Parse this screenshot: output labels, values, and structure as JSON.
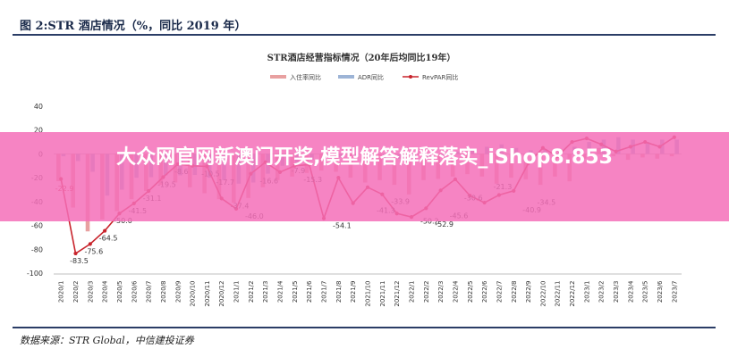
{
  "figure_header": "图 2:STR 酒店情况（%，同比 2019 年）",
  "source_note": "数据来源：STR Global，中信建投证券",
  "overlay_text": "大众网官网新澳门开奖,模型解答解释落实_iShop8.853",
  "chart_data": {
    "type": "line",
    "title": "STR酒店经营指标情况（20年后均同比19年）",
    "ylim": [
      -100,
      40
    ],
    "yticks": [
      40,
      20,
      0,
      -20,
      -40,
      -60,
      -80,
      -100
    ],
    "x": [
      "2020/1",
      "2020/2",
      "2020/3",
      "2020/4",
      "2020/5",
      "2020/6",
      "2020/7",
      "2020/8",
      "2020/9",
      "2020/10",
      "2020/11",
      "2020/12",
      "2021/1",
      "2021/2",
      "2021/3",
      "2021/4",
      "2021/5",
      "2021/6",
      "2021/7",
      "2021/8",
      "2021/9",
      "2021/10",
      "2021/11",
      "2021/12",
      "2022/1",
      "2022/2",
      "2022/3",
      "2022/4",
      "2022/5",
      "2022/6",
      "2022/7",
      "2022/8",
      "2022/9",
      "2022/10",
      "2022/11",
      "2022/12",
      "2023/1",
      "2023/2",
      "2023/3",
      "2023/4",
      "2023/5",
      "2023/6",
      "2023/7"
    ],
    "legend_position": "top-center",
    "series": [
      {
        "name": "入住率同比",
        "color": "#e8a0a0",
        "line": false,
        "bar": true,
        "values": [
          -22.9,
          -45,
          -65,
          -55,
          -48,
          -38,
          -31.1,
          -26,
          -24,
          -28,
          -33,
          -38,
          -41,
          -37,
          -28,
          -22,
          -19,
          -16,
          -14,
          -15,
          -20,
          -24,
          -22,
          -26,
          -34,
          -22,
          -21,
          -19,
          -17,
          -19,
          -25,
          -20,
          -21.3,
          -26,
          -19,
          -23,
          -4,
          5,
          -2,
          -5,
          -3,
          -4,
          -2
        ]
      },
      {
        "name": "ADR同比",
        "color": "#9db4d6",
        "line": false,
        "bar": true,
        "values": [
          -2,
          -6,
          -15,
          -35,
          -30,
          -20,
          -19.5,
          -18,
          -18,
          -17.7,
          -20,
          -22,
          -25,
          -24,
          -16.6,
          -10,
          -7.9,
          -5,
          -2,
          -3,
          -2,
          -3,
          -5,
          -4,
          -6,
          -3,
          -2,
          2,
          4,
          6,
          8,
          5,
          3,
          4,
          4,
          6,
          10,
          12,
          14,
          12,
          10,
          12,
          12
        ]
      },
      {
        "name": "RevPAR同比",
        "color": "#c8242c",
        "line": true,
        "bar": false,
        "values": [
          -21,
          -83.5,
          -75.6,
          -64.5,
          -50,
          -41.5,
          -31.1,
          -19.5,
          -8.6,
          -10,
          -10.5,
          -37.4,
          -46,
          -16.6,
          -7,
          -15.3,
          -10,
          -9,
          -54.1,
          -20,
          -41.3,
          -28,
          -33.9,
          -50,
          -52.9,
          -45.6,
          -30.6,
          -21.3,
          -35,
          -40.9,
          -34.5,
          -31,
          -8,
          5,
          -2,
          10,
          13,
          8,
          2,
          6,
          10,
          6,
          14
        ]
      }
    ],
    "labels": [
      {
        "text": "-22.9",
        "i": 0,
        "v": -22.9,
        "color": "#c8242c"
      },
      {
        "text": "-83.5",
        "i": 1,
        "v": -83.5,
        "color": "#333333"
      },
      {
        "text": "-75.6",
        "i": 2,
        "v": -75.6,
        "color": "#333333"
      },
      {
        "text": "-64.5",
        "i": 3,
        "v": -64.5,
        "color": "#333333"
      },
      {
        "text": "-50.0",
        "i": 4,
        "v": -50.0,
        "color": "#333333"
      },
      {
        "text": "-41.5",
        "i": 5,
        "v": -41.5,
        "color": "#333333"
      },
      {
        "text": "-31.1",
        "i": 6,
        "v": -31.1,
        "color": "#333333"
      },
      {
        "text": "-19.5",
        "i": 7,
        "v": -19.5,
        "color": "#333333"
      },
      {
        "text": "-8.6",
        "i": 8,
        "v": -8.6,
        "color": "#333333"
      },
      {
        "text": "-10.5",
        "i": 10,
        "v": -10.5,
        "color": "#333333"
      },
      {
        "text": "-17.7",
        "i": 11,
        "v": -17.7,
        "color": "#333333"
      },
      {
        "text": "-37.4",
        "i": 12,
        "v": -37.4,
        "color": "#333333"
      },
      {
        "text": "-46.0",
        "i": 13,
        "v": -46.0,
        "color": "#333333"
      },
      {
        "text": "-16.6",
        "i": 14,
        "v": -16.6,
        "color": "#333333"
      },
      {
        "text": "-7.9",
        "i": 16,
        "v": -7.9,
        "color": "#333333"
      },
      {
        "text": "-15.3",
        "i": 17,
        "v": -15.3,
        "color": "#333333"
      },
      {
        "text": "-54.1",
        "i": 19,
        "v": -54.1,
        "color": "#333333"
      },
      {
        "text": "-41.3",
        "i": 22,
        "v": -41.3,
        "color": "#333333"
      },
      {
        "text": "-33.9",
        "i": 23,
        "v": -33.9,
        "color": "#333333"
      },
      {
        "text": "-50.2",
        "i": 25,
        "v": -50.2,
        "color": "#333333"
      },
      {
        "text": "-52.9",
        "i": 26,
        "v": -52.9,
        "color": "#333333"
      },
      {
        "text": "-45.6",
        "i": 27,
        "v": -45.6,
        "color": "#333333"
      },
      {
        "text": "-30.6",
        "i": 28,
        "v": -30.6,
        "color": "#333333"
      },
      {
        "text": "-21.3",
        "i": 30,
        "v": -21.3,
        "color": "#333333"
      },
      {
        "text": "-40.9",
        "i": 32,
        "v": -40.9,
        "color": "#333333"
      },
      {
        "text": "-34.5",
        "i": 33,
        "v": -34.5,
        "color": "#333333"
      }
    ]
  }
}
